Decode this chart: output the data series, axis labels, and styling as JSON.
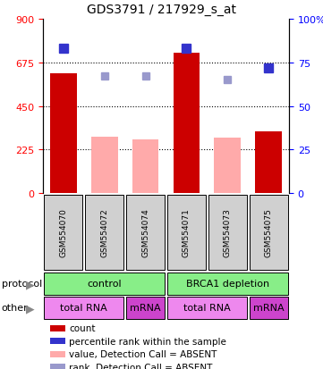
{
  "title": "GDS3791 / 217929_s_at",
  "samples": [
    "GSM554070",
    "GSM554072",
    "GSM554074",
    "GSM554071",
    "GSM554073",
    "GSM554075"
  ],
  "bar_values": [
    620,
    290,
    275,
    725,
    285,
    320
  ],
  "bar_colors": [
    "#cc0000",
    "#ffaaaa",
    "#ffaaaa",
    "#cc0000",
    "#ffaaaa",
    "#cc0000"
  ],
  "dot_values": [
    83,
    67,
    67,
    83,
    65,
    72
  ],
  "dot_colors": [
    "#3333cc",
    "#9999cc",
    "#9999cc",
    "#3333cc",
    "#9999cc",
    "#3333cc"
  ],
  "dot_dark": [
    true,
    false,
    false,
    true,
    false,
    true
  ],
  "ylim_left": [
    0,
    900
  ],
  "ylim_right": [
    0,
    100
  ],
  "yticks_left": [
    0,
    225,
    450,
    675,
    900
  ],
  "yticks_right": [
    0,
    25,
    50,
    75,
    100
  ],
  "ytick_right_labels": [
    "0",
    "25",
    "50",
    "75",
    "100%"
  ],
  "dotted_lines": [
    225,
    450,
    675
  ],
  "protocol_labels": [
    [
      "control",
      0,
      3
    ],
    [
      "BRCA1 depletion",
      3,
      6
    ]
  ],
  "other_labels": [
    [
      "total RNA",
      0,
      2
    ],
    [
      "mRNA",
      2,
      3
    ],
    [
      "total RNA",
      3,
      5
    ],
    [
      "mRNA",
      5,
      6
    ]
  ],
  "protocol_color": "#88ee88",
  "other_colors": {
    "total RNA": "#ee88ee",
    "mRNA": "#cc44cc"
  },
  "sample_bg_color": "#d0d0d0",
  "legend_items": [
    {
      "color": "#cc0000",
      "label": "count"
    },
    {
      "color": "#3333cc",
      "label": "percentile rank within the sample"
    },
    {
      "color": "#ffaaaa",
      "label": "value, Detection Call = ABSENT"
    },
    {
      "color": "#9999cc",
      "label": "rank, Detection Call = ABSENT"
    }
  ],
  "n_samples": 6
}
